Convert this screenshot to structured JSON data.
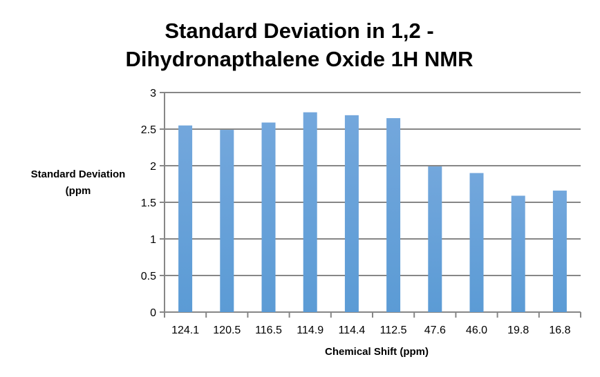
{
  "chart_data": {
    "type": "bar",
    "title": [
      "Standard Deviation in 1,2 -",
      "Dihydronapthalene Oxide 1H NMR"
    ],
    "xlabel": "Chemical Shift (ppm)",
    "ylabel": [
      "Standard Deviation",
      "(ppm"
    ],
    "categories": [
      "124.1",
      "120.5",
      "116.5",
      "114.9",
      "114.4",
      "112.5",
      "47.6",
      "46.0",
      "19.8",
      "16.8"
    ],
    "values": [
      2.55,
      2.49,
      2.59,
      2.73,
      2.69,
      2.65,
      1.99,
      1.9,
      1.59,
      1.66
    ],
    "ylim": [
      0,
      3
    ],
    "yticks": [
      "0",
      "0.5",
      "1",
      "1.5",
      "2",
      "2.5",
      "3"
    ],
    "grid": true,
    "legend": "none",
    "bar_color": "#5b9bd5",
    "grid_color": "#868686"
  }
}
